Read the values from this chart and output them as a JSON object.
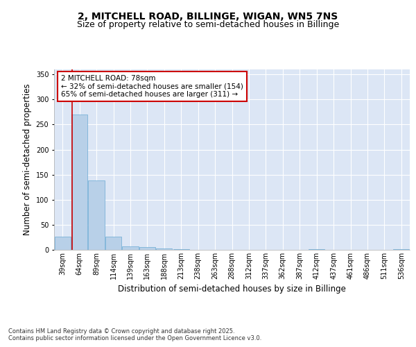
{
  "title_line1": "2, MITCHELL ROAD, BILLINGE, WIGAN, WN5 7NS",
  "title_line2": "Size of property relative to semi-detached houses in Billinge",
  "xlabel": "Distribution of semi-detached houses by size in Billinge",
  "ylabel": "Number of semi-detached properties",
  "categories": [
    "39sqm",
    "64sqm",
    "89sqm",
    "114sqm",
    "139sqm",
    "163sqm",
    "188sqm",
    "213sqm",
    "238sqm",
    "263sqm",
    "288sqm",
    "312sqm",
    "337sqm",
    "362sqm",
    "387sqm",
    "412sqm",
    "437sqm",
    "461sqm",
    "486sqm",
    "511sqm",
    "536sqm"
  ],
  "values": [
    26,
    270,
    138,
    27,
    7,
    6,
    3,
    2,
    0,
    0,
    0,
    0,
    0,
    0,
    0,
    2,
    0,
    0,
    0,
    0,
    2
  ],
  "bar_color": "#b8d0e8",
  "bar_edge_color": "#6aaad4",
  "bar_width": 0.95,
  "plot_bg_color": "#dce6f5",
  "grid_color": "#ffffff",
  "red_line_color": "#cc0000",
  "red_line_bin": 1,
  "annotation_text": "2 MITCHELL ROAD: 78sqm\n← 32% of semi-detached houses are smaller (154)\n65% of semi-detached houses are larger (311) →",
  "annotation_box_color": "#ffffff",
  "annotation_box_edge": "#cc0000",
  "ylim": [
    0,
    360
  ],
  "yticks": [
    0,
    50,
    100,
    150,
    200,
    250,
    300,
    350
  ],
  "footnote": "Contains HM Land Registry data © Crown copyright and database right 2025.\nContains public sector information licensed under the Open Government Licence v3.0.",
  "title_fontsize": 10,
  "subtitle_fontsize": 9,
  "axis_label_fontsize": 8.5,
  "tick_fontsize": 7,
  "annotation_fontsize": 7.5,
  "footnote_fontsize": 6
}
